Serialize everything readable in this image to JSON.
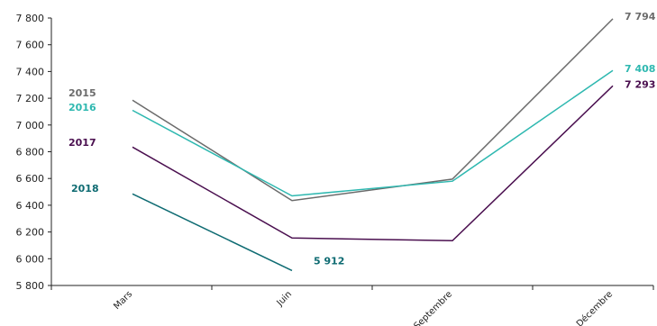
{
  "chart_data": {
    "type": "line",
    "title": "",
    "xlabel": "",
    "ylabel": "",
    "categories": [
      "Mars",
      "Juin",
      "Septembre",
      "Décembre"
    ],
    "ylim": [
      5800,
      7800
    ],
    "y_ticks": [
      5800,
      6000,
      6200,
      6400,
      6600,
      6800,
      7000,
      7200,
      7400,
      7600,
      7800
    ],
    "y_tick_labels": [
      "5 800",
      "6 000",
      "6 200",
      "6 400",
      "6 600",
      "6 800",
      "7 000",
      "7 200",
      "7 400",
      "7 600",
      "7 800"
    ],
    "grid": false,
    "legend": "inline-left",
    "series": [
      {
        "name": "2015",
        "color": "#6b6b6b",
        "values": [
          7185,
          6435,
          6595,
          7794
        ],
        "end_label": "7 794"
      },
      {
        "name": "2016",
        "color": "#2eb8b0",
        "values": [
          7110,
          6470,
          6580,
          7408
        ],
        "end_label": "7 408"
      },
      {
        "name": "2017",
        "color": "#4a0f4f",
        "values": [
          6835,
          6155,
          6135,
          7293
        ],
        "end_label": "7 293"
      },
      {
        "name": "2018",
        "color": "#0e6b72",
        "values": [
          6485,
          5912,
          null,
          null
        ],
        "end_label": "5 912"
      }
    ]
  }
}
